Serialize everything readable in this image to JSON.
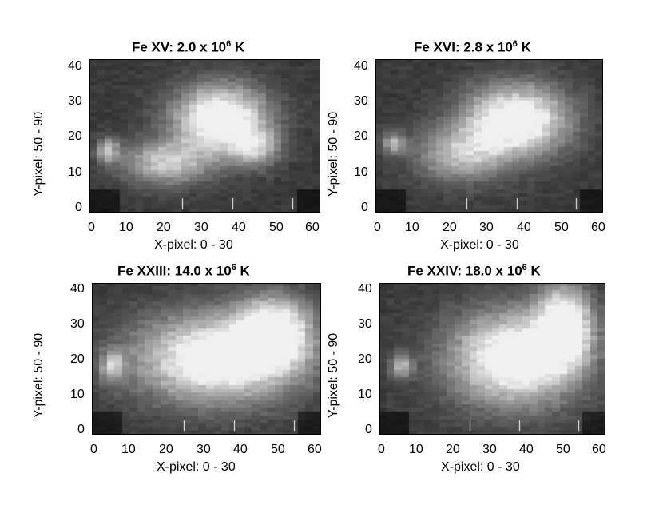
{
  "panels": [
    {
      "title_main": "Fe XV: 2.0 x 10",
      "title_exp": "6",
      "title_unit": " K",
      "ylabel": "Y-pixel: 50 - 90",
      "xlabel": "X-pixel: 0 - 30",
      "yticks": [
        "0",
        "10",
        "20",
        "30",
        "40"
      ],
      "xticks": [
        "0",
        "10",
        "20",
        "30",
        "40",
        "50",
        "60"
      ],
      "blobs": [
        {
          "x": 0.57,
          "y": 0.4,
          "rx": 0.2,
          "ry": 0.22,
          "v": 1.0
        },
        {
          "x": 0.33,
          "y": 0.68,
          "rx": 0.18,
          "ry": 0.14,
          "v": 0.6
        },
        {
          "x": 0.08,
          "y": 0.6,
          "rx": 0.05,
          "ry": 0.08,
          "v": 0.55
        },
        {
          "x": 0.72,
          "y": 0.58,
          "rx": 0.1,
          "ry": 0.12,
          "v": 0.5
        }
      ]
    },
    {
      "title_main": "Fe XVI: 2.8 x 10",
      "title_exp": "6",
      "title_unit": " K",
      "ylabel": "Y-pixel: 50 - 90",
      "xlabel": "X-pixel: 0 - 30",
      "yticks": [
        "0",
        "10",
        "20",
        "30",
        "40"
      ],
      "xticks": [
        "0",
        "10",
        "20",
        "30",
        "40",
        "50",
        "60"
      ],
      "blobs": [
        {
          "x": 0.62,
          "y": 0.4,
          "rx": 0.22,
          "ry": 0.22,
          "v": 1.0
        },
        {
          "x": 0.38,
          "y": 0.62,
          "rx": 0.2,
          "ry": 0.18,
          "v": 0.55
        },
        {
          "x": 0.08,
          "y": 0.55,
          "rx": 0.05,
          "ry": 0.07,
          "v": 0.5
        }
      ]
    },
    {
      "title_main": "Fe XXIII: 14.0 x 10",
      "title_exp": "6",
      "title_unit": " K",
      "ylabel": "Y-pixel: 50 - 90",
      "xlabel": "X-pixel: 0 - 30",
      "yticks": [
        "0",
        "10",
        "20",
        "30",
        "40"
      ],
      "xticks": [
        "0",
        "10",
        "20",
        "30",
        "40",
        "50",
        "60"
      ],
      "blobs": [
        {
          "x": 0.55,
          "y": 0.5,
          "rx": 0.35,
          "ry": 0.28,
          "v": 1.0
        },
        {
          "x": 0.8,
          "y": 0.32,
          "rx": 0.15,
          "ry": 0.22,
          "v": 0.9
        },
        {
          "x": 0.09,
          "y": 0.55,
          "rx": 0.05,
          "ry": 0.1,
          "v": 0.55
        }
      ]
    },
    {
      "title_main": "Fe XXIV: 18.0 x 10",
      "title_exp": "6",
      "title_unit": " K",
      "ylabel": "Y-pixel: 50 - 90",
      "xlabel": "X-pixel: 0 - 30",
      "yticks": [
        "0",
        "10",
        "20",
        "30",
        "40"
      ],
      "xticks": [
        "0",
        "10",
        "20",
        "30",
        "40",
        "50",
        "60"
      ],
      "blobs": [
        {
          "x": 0.6,
          "y": 0.5,
          "rx": 0.28,
          "ry": 0.3,
          "v": 1.0
        },
        {
          "x": 0.82,
          "y": 0.28,
          "rx": 0.12,
          "ry": 0.25,
          "v": 0.9
        },
        {
          "x": 0.1,
          "y": 0.55,
          "rx": 0.05,
          "ry": 0.08,
          "v": 0.5
        }
      ]
    }
  ]
}
